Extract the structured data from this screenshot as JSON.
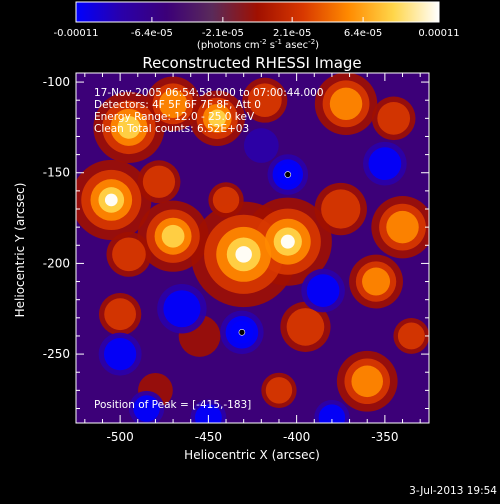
{
  "colorbar": {
    "tick_labels": [
      "-0.00011",
      "-6.4e-05",
      "-2.1e-05",
      "2.1e-05",
      "6.4e-05",
      "0.00011"
    ],
    "tick_values": [
      -0.00011,
      -6.4e-05,
      -2.1e-05,
      2.1e-05,
      6.4e-05,
      0.00011
    ],
    "range": [
      -0.00011,
      0.00011
    ],
    "units_main": "(photons cm",
    "units_exp1": "-2",
    "units_mid": " s",
    "units_exp2": "-1",
    "units_end": " asec",
    "units_exp3": "-2",
    "units_close": ")"
  },
  "title": "Reconstructed RHESSI Image",
  "info_lines": [
    "17-Nov-2005 06:54:58.000 to 07:00:44.000",
    "Detectors: 4F 5F 6F 7F 8F, Att 0",
    "Energy Range: 12.0 - 25.0 keV",
    "Clean     Total counts: 6.52E+03"
  ],
  "peak_label": "Position of Peak = [-415,-183]",
  "footer_date": "3-Jul-2013 19:54",
  "colors": {
    "scale": [
      "#0000ff",
      "#2a00aa",
      "#3c0078",
      "#5a2a5a",
      "#a01000",
      "#d83800",
      "#ff8a00",
      "#ffd64a",
      "#ffffff"
    ]
  },
  "chart_data": {
    "type": "heatmap",
    "title": "Reconstructed RHESSI Image",
    "xlabel": "Heliocentric X (arcsec)",
    "ylabel": "Heliocentric Y (arcsec)",
    "xlim": [
      -525,
      -325
    ],
    "ylim": [
      -288,
      -95
    ],
    "x_ticks": [
      -500,
      -450,
      -400,
      -350
    ],
    "y_ticks": [
      -100,
      -150,
      -200,
      -250
    ],
    "x_tick_labels": [
      "-500",
      "-450",
      "-400",
      "-350"
    ],
    "y_tick_labels": [
      "-100",
      "-150",
      "-200",
      "-250"
    ],
    "peak": {
      "x": -415,
      "y": -183
    },
    "markers": [
      {
        "x": -405,
        "y": -151
      },
      {
        "x": -431,
        "y": -238
      }
    ],
    "blobs": [
      {
        "x": -495,
        "y": -125,
        "r": 18,
        "v": 0.9
      },
      {
        "x": -470,
        "y": -112,
        "r": 14,
        "v": 0.85
      },
      {
        "x": -445,
        "y": -120,
        "r": 14,
        "v": 0.9
      },
      {
        "x": -418,
        "y": -110,
        "r": 12,
        "v": 0.7
      },
      {
        "x": -372,
        "y": -112,
        "r": 16,
        "v": 0.85
      },
      {
        "x": -345,
        "y": -120,
        "r": 12,
        "v": 0.6
      },
      {
        "x": -505,
        "y": -165,
        "r": 20,
        "v": 0.95
      },
      {
        "x": -478,
        "y": -155,
        "r": 12,
        "v": 0.55
      },
      {
        "x": -470,
        "y": -185,
        "r": 18,
        "v": 0.9
      },
      {
        "x": -495,
        "y": -195,
        "r": 12,
        "v": 0.7
      },
      {
        "x": -430,
        "y": -195,
        "r": 26,
        "v": 1.0
      },
      {
        "x": -405,
        "y": -188,
        "r": 22,
        "v": 0.95
      },
      {
        "x": -375,
        "y": -170,
        "r": 14,
        "v": 0.7
      },
      {
        "x": -340,
        "y": -180,
        "r": 16,
        "v": 0.85
      },
      {
        "x": -355,
        "y": -210,
        "r": 14,
        "v": 0.8
      },
      {
        "x": -440,
        "y": -165,
        "r": 10,
        "v": 0.5
      },
      {
        "x": -500,
        "y": -228,
        "r": 12,
        "v": 0.5
      },
      {
        "x": -455,
        "y": -240,
        "r": 12,
        "v": 0.45
      },
      {
        "x": -395,
        "y": -235,
        "r": 14,
        "v": 0.55
      },
      {
        "x": -360,
        "y": -265,
        "r": 16,
        "v": 0.75
      },
      {
        "x": -335,
        "y": -240,
        "r": 10,
        "v": 0.55
      },
      {
        "x": -410,
        "y": -270,
        "r": 10,
        "v": 0.5
      },
      {
        "x": -480,
        "y": -270,
        "r": 10,
        "v": 0.45
      },
      {
        "x": -405,
        "y": -151,
        "r": 10,
        "v": -1.0
      },
      {
        "x": -431,
        "y": -238,
        "r": 11,
        "v": -0.9
      },
      {
        "x": -465,
        "y": -225,
        "r": 14,
        "v": -0.5
      },
      {
        "x": -385,
        "y": -215,
        "r": 12,
        "v": -0.6
      },
      {
        "x": -350,
        "y": -145,
        "r": 12,
        "v": -0.6
      },
      {
        "x": -500,
        "y": -250,
        "r": 12,
        "v": -0.55
      },
      {
        "x": -420,
        "y": -135,
        "r": 10,
        "v": -0.45
      },
      {
        "x": -485,
        "y": -280,
        "r": 10,
        "v": -0.5
      },
      {
        "x": -380,
        "y": -285,
        "r": 10,
        "v": -0.5
      },
      {
        "x": -450,
        "y": -285,
        "r": 10,
        "v": -0.55
      }
    ]
  }
}
